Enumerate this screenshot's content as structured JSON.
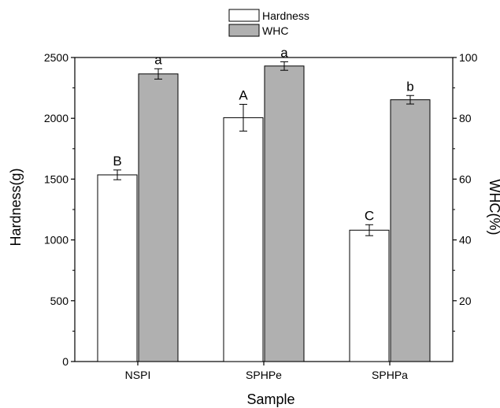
{
  "chart_data": {
    "type": "bar",
    "title": "",
    "xlabel": "Sample",
    "ylabel": "Hardness(g)",
    "y2label": "WHC(%)",
    "categories": [
      "NSPI",
      "SPHPe",
      "SPHPa"
    ],
    "ylim": [
      0,
      2500
    ],
    "y2lim": [
      0,
      100
    ],
    "yticks": [
      "0",
      "500",
      "1000",
      "1500",
      "2000",
      "2500"
    ],
    "y2ticks": [
      "20",
      "40",
      "60",
      "80",
      "100"
    ],
    "legend_position": "top-center",
    "series": [
      {
        "name": "Hardness",
        "axis": "left",
        "color": "#ffffff",
        "values": [
          1535,
          2005,
          1080
        ],
        "errors": [
          40,
          110,
          45
        ],
        "labels": [
          "B",
          "A",
          "C"
        ]
      },
      {
        "name": "WHC",
        "axis": "right",
        "color": "#b0b0b0",
        "values": [
          94.6,
          97.2,
          86.1
        ],
        "errors": [
          1.7,
          1.4,
          1.4
        ],
        "labels": [
          "a",
          "a",
          "b"
        ]
      }
    ]
  }
}
